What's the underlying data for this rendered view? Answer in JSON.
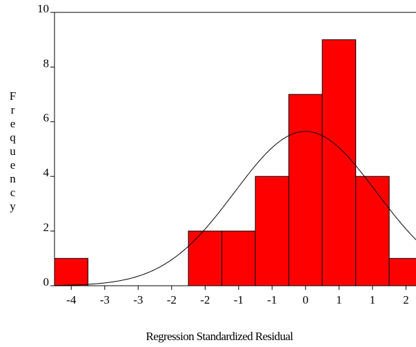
{
  "chart_data": {
    "type": "histogram",
    "x_label": "Regression Standardized Residual",
    "y_label": "Frequency",
    "bins": [
      -3.75,
      -3.25,
      -2.75,
      -2.25,
      -1.75,
      -1.25,
      -0.75,
      -0.25,
      0.25,
      0.75,
      1.25,
      1.75
    ],
    "counts": [
      1,
      0,
      0,
      0,
      2,
      2,
      4,
      7,
      9,
      4,
      1
    ],
    "color": "#ff0000",
    "curve": {
      "mean": 0,
      "sd": 1.06
    },
    "xlim": [
      -3.75,
      1.65
    ],
    "ylim": [
      0,
      10
    ],
    "xticks": [
      {
        "value": -3.5,
        "label": "-4"
      },
      {
        "value": -3,
        "label": "-3"
      },
      {
        "value": -2.5,
        "label": "-3"
      },
      {
        "value": -2,
        "label": "-2"
      },
      {
        "value": -1.5,
        "label": "-2"
      },
      {
        "value": -1,
        "label": "-1"
      },
      {
        "value": -0.5,
        "label": "-1"
      },
      {
        "value": 0,
        "label": "0"
      },
      {
        "value": 0.5,
        "label": "1"
      },
      {
        "value": 1,
        "label": "1"
      },
      {
        "value": 1.5,
        "label": "2"
      }
    ],
    "yticks": [
      0,
      2,
      4,
      6,
      8,
      10
    ]
  }
}
